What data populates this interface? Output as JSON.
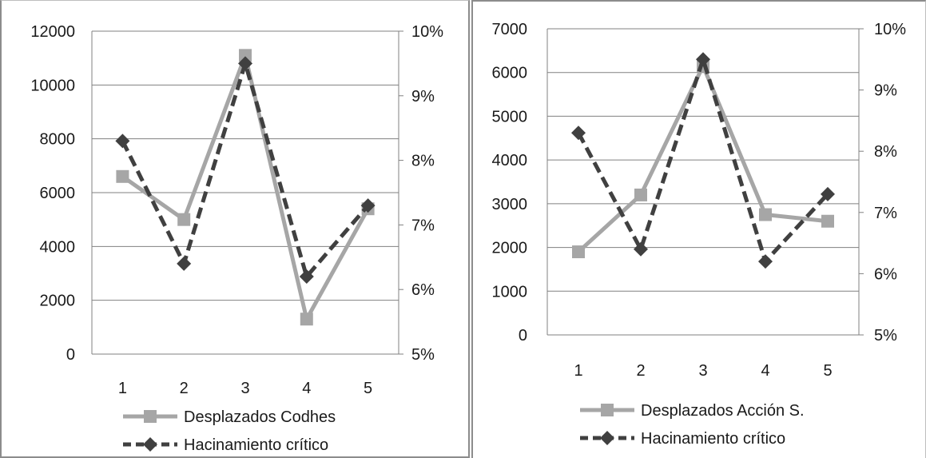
{
  "colors": {
    "series_a": "#a6a6a6",
    "series_b": "#404040",
    "gridline": "#808080",
    "axis": "#808080",
    "panel_border": "#8c8c8c"
  },
  "chart_data": [
    {
      "type": "line",
      "categories": [
        "1",
        "2",
        "3",
        "4",
        "5"
      ],
      "series": [
        {
          "name": "Desplazados Codhes",
          "axis": "left",
          "marker": "square",
          "style": "solid",
          "values": [
            6600,
            5000,
            11100,
            1300,
            5400
          ]
        },
        {
          "name": "Hacinamiento crítico",
          "axis": "right",
          "marker": "diamond",
          "style": "dashed",
          "values": [
            0.083,
            0.064,
            0.095,
            0.062,
            0.073
          ]
        }
      ],
      "y_left": {
        "min": 0,
        "max": 12000,
        "step": 2000,
        "tick_labels": [
          "0",
          "2000",
          "4000",
          "6000",
          "8000",
          "10000",
          "12000"
        ]
      },
      "y_right": {
        "min": 0.05,
        "max": 0.1,
        "step": 0.01,
        "tick_labels": [
          "5%",
          "6%",
          "7%",
          "8%",
          "9%",
          "10%"
        ]
      },
      "grid": true,
      "legend_position": "bottom"
    },
    {
      "type": "line",
      "categories": [
        "1",
        "2",
        "3",
        "4",
        "5"
      ],
      "series": [
        {
          "name": "Desplazados Acción S.",
          "axis": "left",
          "marker": "square",
          "style": "solid",
          "values": [
            1900,
            3200,
            6150,
            2750,
            2600
          ]
        },
        {
          "name": "Hacinamiento crítico",
          "axis": "right",
          "marker": "diamond",
          "style": "dashed",
          "values": [
            0.083,
            0.064,
            0.095,
            0.062,
            0.073
          ]
        }
      ],
      "y_left": {
        "min": 0,
        "max": 7000,
        "step": 1000,
        "tick_labels": [
          "0",
          "1000",
          "2000",
          "3000",
          "4000",
          "5000",
          "6000",
          "7000"
        ]
      },
      "y_right": {
        "min": 0.05,
        "max": 0.1,
        "step": 0.01,
        "tick_labels": [
          "5%",
          "6%",
          "7%",
          "8%",
          "9%",
          "10%"
        ]
      },
      "grid": true,
      "legend_position": "bottom"
    }
  ]
}
